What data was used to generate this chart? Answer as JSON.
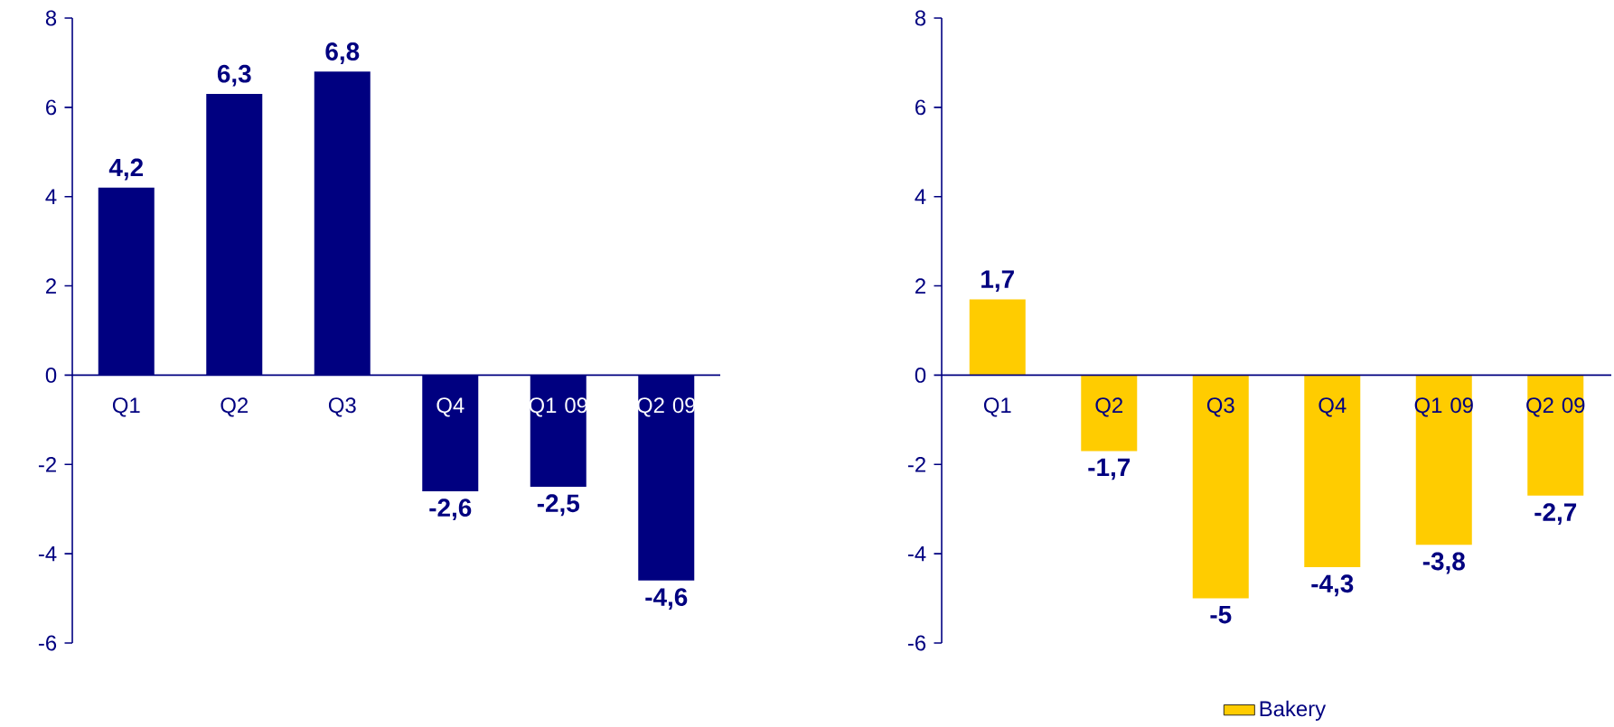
{
  "chart_data": [
    {
      "type": "bar",
      "categories": [
        "Q1",
        "Q2",
        "Q3",
        "Q4",
        "Q1 09",
        "Q2 09"
      ],
      "series": [
        {
          "color": "#000080",
          "values": [
            4.2,
            6.3,
            6.8,
            -2.6,
            -2.5,
            -4.6
          ],
          "value_labels": [
            "4,2",
            "6,3",
            "6,8",
            "-2,6",
            "-2,5",
            "-4,6"
          ]
        }
      ],
      "ylim": [
        -6,
        8
      ],
      "yticks": [
        -6,
        -4,
        -2,
        0,
        2,
        4,
        6,
        8
      ],
      "grid": false,
      "legend": false
    },
    {
      "type": "bar",
      "categories": [
        "Q1",
        "Q2",
        "Q3",
        "Q4",
        "Q1 09",
        "Q2 09"
      ],
      "series": [
        {
          "name": "Bakery",
          "color": "#ffcc00",
          "values": [
            1.7,
            -1.7,
            -5,
            -4.3,
            -3.8,
            -2.7
          ],
          "value_labels": [
            "1,7",
            "-1,7",
            "-5",
            "-4,3",
            "-3,8",
            "-2,7"
          ]
        }
      ],
      "ylim": [
        -6,
        8
      ],
      "yticks": [
        -6,
        -4,
        -2,
        0,
        2,
        4,
        6,
        8
      ],
      "grid": false,
      "legend": "bottom"
    }
  ]
}
